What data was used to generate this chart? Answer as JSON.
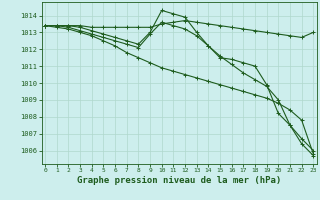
{
  "background_color": "#cdeeed",
  "grid_color": "#b0d8cc",
  "line_color": "#1e5c1e",
  "title": "Graphe pression niveau de la mer (hPa)",
  "title_fontsize": 6.5,
  "ylim": [
    1005.2,
    1014.8
  ],
  "xlim": [
    -0.3,
    23.3
  ],
  "yticks": [
    1006,
    1007,
    1008,
    1009,
    1010,
    1011,
    1012,
    1013,
    1014
  ],
  "xticks": [
    0,
    1,
    2,
    3,
    4,
    5,
    6,
    7,
    8,
    9,
    10,
    11,
    12,
    13,
    14,
    15,
    16,
    17,
    18,
    19,
    20,
    21,
    22,
    23
  ],
  "series": [
    [
      1013.4,
      1013.4,
      1013.4,
      1013.4,
      1013.3,
      1013.3,
      1013.3,
      1013.3,
      1013.3,
      1013.3,
      1013.5,
      1013.6,
      1013.7,
      1013.6,
      1013.5,
      1013.4,
      1013.3,
      1013.2,
      1013.1,
      1013.0,
      1012.9,
      1012.8,
      1012.7,
      1013.0
    ],
    [
      1013.4,
      1013.4,
      1013.4,
      1013.3,
      1013.1,
      1012.9,
      1012.7,
      1012.5,
      1012.3,
      1013.0,
      1014.3,
      1014.1,
      1013.9,
      1013.0,
      1012.2,
      1011.5,
      1011.4,
      1011.2,
      1011.0,
      1009.9,
      1008.2,
      1007.5,
      1006.7,
      1006.0
    ],
    [
      1013.4,
      1013.4,
      1013.3,
      1013.1,
      1012.9,
      1012.7,
      1012.5,
      1012.3,
      1012.1,
      1012.9,
      1013.6,
      1013.4,
      1013.2,
      1012.8,
      1012.2,
      1011.6,
      1011.1,
      1010.6,
      1010.2,
      1009.8,
      1009.0,
      1007.5,
      1006.4,
      1005.7
    ],
    [
      1013.4,
      1013.3,
      1013.2,
      1013.0,
      1012.8,
      1012.5,
      1012.2,
      1011.8,
      1011.5,
      1011.2,
      1010.9,
      1010.7,
      1010.5,
      1010.3,
      1010.1,
      1009.9,
      1009.7,
      1009.5,
      1009.3,
      1009.1,
      1008.8,
      1008.4,
      1007.8,
      1005.8
    ]
  ]
}
